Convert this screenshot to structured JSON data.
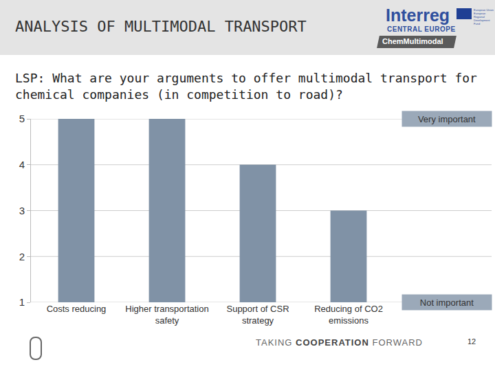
{
  "slide": {
    "header": "ANALYSIS OF MULTIMODAL TRANSPORT",
    "logo": {
      "name": "Interreg",
      "region": "CENTRAL EUROPE",
      "eu": "European Union European Regional Development Fund",
      "project": "ChemMultimodal"
    },
    "footer": {
      "text": "TAKING COOPERATION FORWARD",
      "bold": "COOPERATION"
    },
    "page": "12"
  },
  "chart_data": {
    "type": "bar",
    "title": "LSP: What are your arguments to offer multimodal transport for chemical companies (in competition to road)?",
    "categories": [
      "Costs reducing",
      "Higher transportation safety",
      "Support of CSR strategy",
      "Reducing of CO2 emissions"
    ],
    "values": [
      5,
      5,
      4,
      3
    ],
    "color": "#8092a6",
    "ylim": [
      1,
      5
    ],
    "yticks": [
      1,
      2,
      3,
      4,
      5
    ],
    "grid": true,
    "annotations": [
      "Very important",
      "Not important"
    ]
  }
}
